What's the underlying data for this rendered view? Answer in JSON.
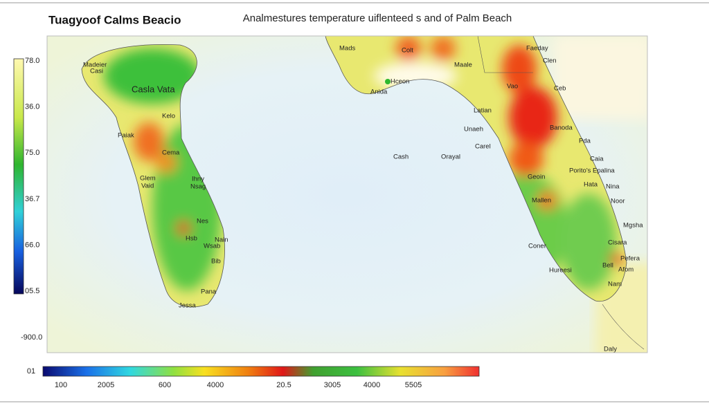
{
  "header": {
    "title": "Tuagyoof Calms Beacio",
    "subtitle": "Analmestures temperature uiflenteed s and of Palm Beach"
  },
  "scale_left": {
    "labels": [
      "78.0",
      "36.0",
      "75.0",
      "36.7",
      "66.0",
      "05.5",
      "-900.0"
    ]
  },
  "scale_bottom": {
    "start_label": "01",
    "labels": [
      "100",
      "2005",
      "600",
      "4000",
      "20.5",
      "3005",
      "4000",
      "5505"
    ]
  },
  "places": [
    "Madeier",
    "Casi",
    "Casla Vata",
    "Kelo",
    "Paiak",
    "Cema",
    "Glem",
    "Vaid",
    "Ihny",
    "Nsag",
    "Nes",
    "Hsb",
    "Nain",
    "Wsab",
    "Bib",
    "Pana",
    "Jessa",
    "Mads",
    "Colt",
    "Faeday",
    "Clen",
    "Maale",
    "Hceon",
    "Anida",
    "Vao",
    "Ceb",
    "Latian",
    "Unaeh",
    "Banoda",
    "Pda",
    "Carel",
    "Cash",
    "Orayal",
    "Caia",
    "Porito's Epalina",
    "Geoin",
    "Hata",
    "Nina",
    "Mallen",
    "Noor",
    "Mgsha",
    "Cisara",
    "Coner",
    "Pefera",
    "Bell",
    "Afom",
    "Hureesi",
    "Nam",
    "Daly"
  ]
}
